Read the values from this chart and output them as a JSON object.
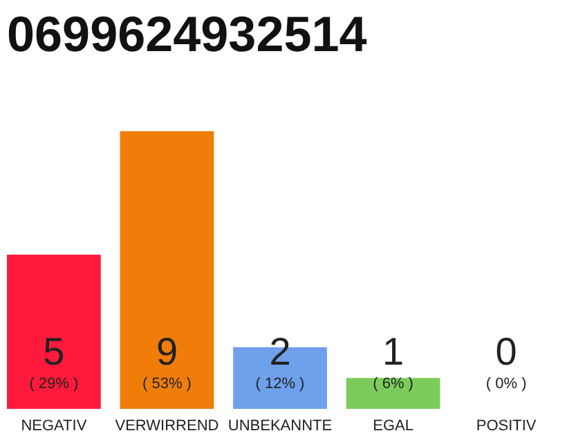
{
  "chart_data": {
    "type": "bar",
    "title": "0699624932514",
    "categories": [
      "NEGATIV",
      "VERWIRREND",
      "UNBEKANNTE",
      "EGAL",
      "POSITIV"
    ],
    "values": [
      5,
      9,
      2,
      1,
      0
    ],
    "colors": [
      "#ff1a3c",
      "#f07d0a",
      "#6ea0ec",
      "#7ccc5c",
      "#cccccc"
    ],
    "ylim": [
      0,
      9
    ],
    "tick_labels": "x",
    "grid": false,
    "data_labels": true,
    "annotations": [
      "( 29% )",
      "( 53% )",
      "( 12% )",
      "( 6% )",
      "( 0% )"
    ]
  }
}
